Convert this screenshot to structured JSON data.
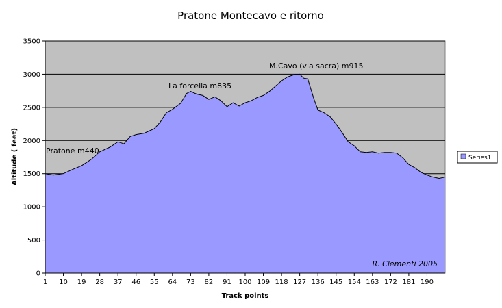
{
  "chart_data": {
    "type": "area",
    "title": "Pratone Montecavo e ritorno",
    "xlabel": "Track points",
    "ylabel": "Altitude ( feet)",
    "ylim": [
      0,
      3500
    ],
    "yticks": [
      0,
      500,
      1000,
      1500,
      2000,
      2500,
      3000,
      3500
    ],
    "xlim": [
      1,
      199
    ],
    "xticks": [
      1,
      10,
      19,
      28,
      37,
      46,
      55,
      64,
      73,
      82,
      91,
      100,
      109,
      118,
      127,
      136,
      145,
      154,
      163,
      172,
      181,
      190
    ],
    "grid": "horizontal",
    "legend_position": "right",
    "background_color": "#c0c0c0",
    "fill_color": "#9999ff",
    "line_color": "#000000",
    "series": [
      {
        "name": "Series1",
        "x": [
          1,
          5,
          10,
          15,
          19,
          24,
          28,
          33,
          37,
          40,
          43,
          46,
          50,
          55,
          58,
          61,
          64,
          68,
          71,
          73,
          76,
          79,
          82,
          85,
          88,
          91,
          94,
          97,
          100,
          103,
          106,
          109,
          112,
          115,
          118,
          121,
          124,
          127,
          129,
          131,
          134,
          136,
          139,
          142,
          145,
          148,
          151,
          154,
          157,
          160,
          163,
          166,
          169,
          172,
          175,
          178,
          181,
          184,
          187,
          190,
          193,
          196,
          199
        ],
        "values": [
          1500,
          1480,
          1500,
          1570,
          1620,
          1720,
          1830,
          1900,
          1980,
          1950,
          2060,
          2090,
          2110,
          2180,
          2280,
          2420,
          2470,
          2560,
          2710,
          2740,
          2700,
          2680,
          2620,
          2660,
          2600,
          2510,
          2570,
          2520,
          2570,
          2600,
          2650,
          2680,
          2740,
          2820,
          2900,
          2960,
          2990,
          3000,
          2940,
          2930,
          2630,
          2460,
          2420,
          2360,
          2250,
          2120,
          1980,
          1920,
          1830,
          1820,
          1830,
          1810,
          1820,
          1820,
          1810,
          1740,
          1640,
          1590,
          1520,
          1480,
          1450,
          1430,
          1450
        ]
      }
    ],
    "annotations": [
      {
        "text": "Pratone m440"
      },
      {
        "text": "La forcella m835"
      },
      {
        "text": "M.Cavo (via sacra) m915"
      },
      {
        "text": "R. Clementi 2005"
      }
    ]
  }
}
